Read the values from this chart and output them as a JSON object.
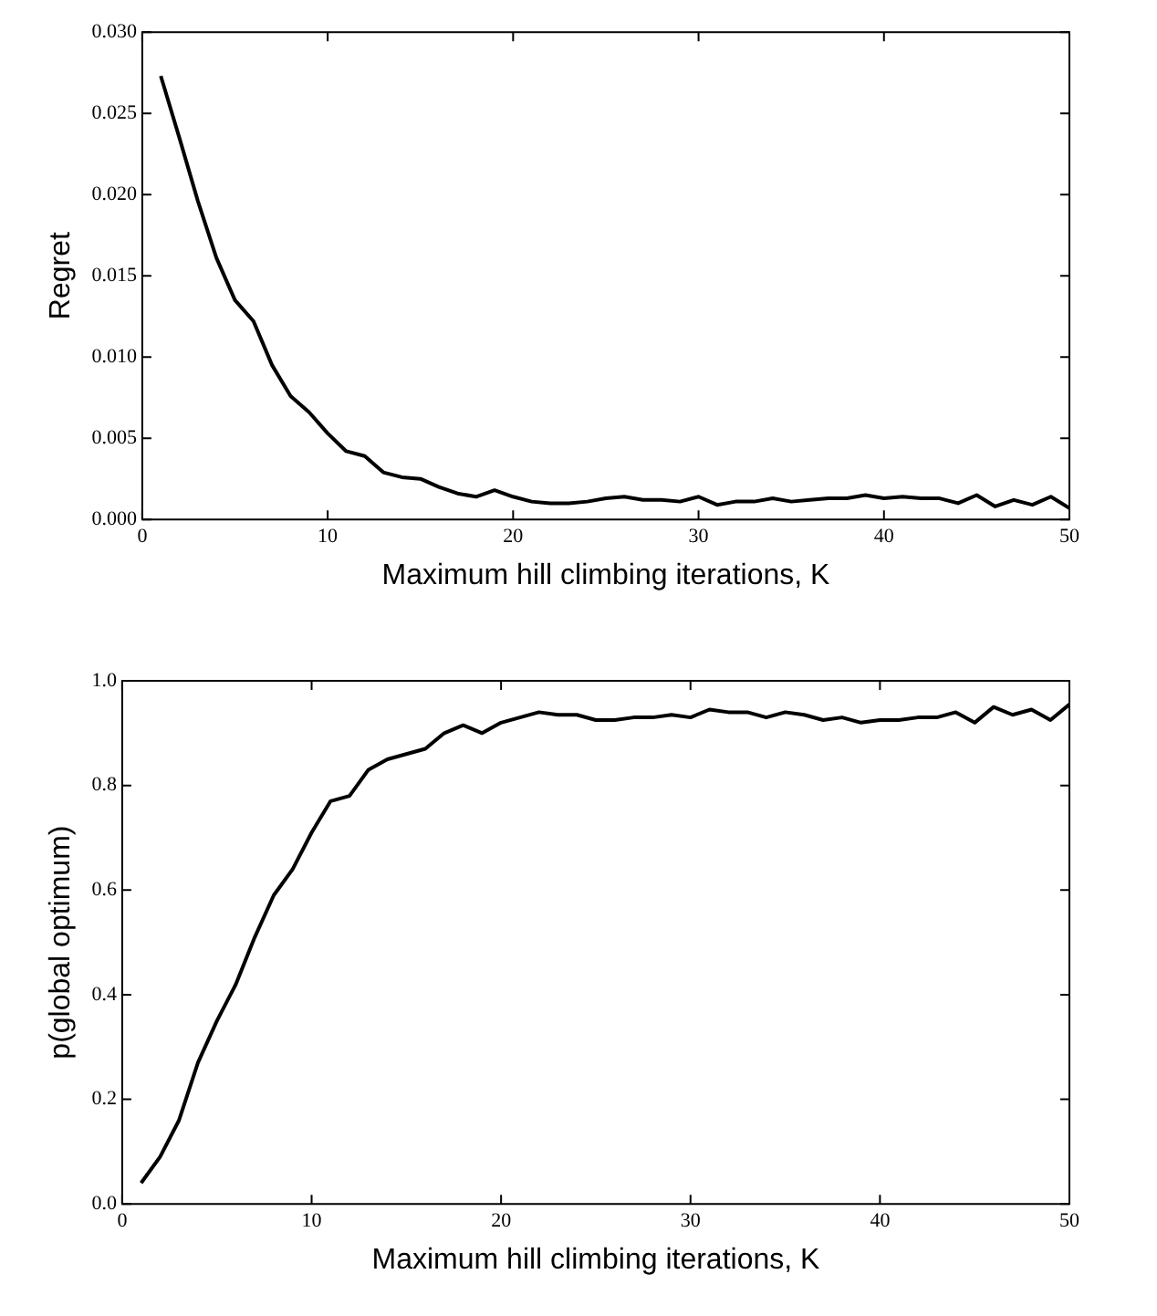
{
  "chart_data": [
    {
      "type": "line",
      "xlabel": "Maximum hill climbing iterations, K",
      "ylabel": "Regret",
      "x": [
        1,
        2,
        3,
        4,
        5,
        6,
        7,
        8,
        9,
        10,
        11,
        12,
        13,
        14,
        15,
        16,
        17,
        18,
        19,
        20,
        21,
        22,
        23,
        24,
        25,
        26,
        27,
        28,
        29,
        30,
        31,
        32,
        33,
        34,
        35,
        36,
        37,
        38,
        39,
        40,
        41,
        42,
        43,
        44,
        45,
        46,
        47,
        48,
        49,
        50
      ],
      "series": [
        {
          "color": "#000000",
          "values": [
            0.0273,
            0.0235,
            0.0196,
            0.0161,
            0.0135,
            0.0122,
            0.0095,
            0.0076,
            0.0066,
            0.0053,
            0.0042,
            0.0039,
            0.0029,
            0.0026,
            0.0025,
            0.002,
            0.0016,
            0.0014,
            0.0018,
            0.0014,
            0.0011,
            0.001,
            0.001,
            0.0011,
            0.0013,
            0.0014,
            0.0012,
            0.0012,
            0.0011,
            0.0014,
            0.0009,
            0.0011,
            0.0011,
            0.0013,
            0.0011,
            0.0012,
            0.0013,
            0.0013,
            0.0015,
            0.0013,
            0.0014,
            0.0013,
            0.0013,
            0.001,
            0.0015,
            0.0008,
            0.0012,
            0.0009,
            0.0014,
            0.0007
          ]
        }
      ],
      "xlim": [
        0,
        50
      ],
      "xticks": [
        0,
        10,
        20,
        30,
        40,
        50
      ],
      "ylim": [
        0,
        0.03
      ],
      "yticks": [
        {
          "value": 0,
          "label": "0.000"
        },
        {
          "value": 0.005,
          "label": "0.005"
        },
        {
          "value": 0.01,
          "label": "0.010"
        },
        {
          "value": 0.015,
          "label": "0.015"
        },
        {
          "value": 0.02,
          "label": "0.020"
        },
        {
          "value": 0.025,
          "label": "0.025"
        },
        {
          "value": 0.03,
          "label": "0.030"
        }
      ],
      "grid": false,
      "legend": false,
      "marker": "none",
      "line_style": "solid"
    },
    {
      "type": "line",
      "xlabel": "Maximum hill climbing iterations, K",
      "ylabel": "p(global optimum)",
      "x": [
        1,
        2,
        3,
        4,
        5,
        6,
        7,
        8,
        9,
        10,
        11,
        12,
        13,
        14,
        15,
        16,
        17,
        18,
        19,
        20,
        21,
        22,
        23,
        24,
        25,
        26,
        27,
        28,
        29,
        30,
        31,
        32,
        33,
        34,
        35,
        36,
        37,
        38,
        39,
        40,
        41,
        42,
        43,
        44,
        45,
        46,
        47,
        48,
        49,
        50
      ],
      "series": [
        {
          "color": "#000000",
          "values": [
            0.04,
            0.09,
            0.16,
            0.27,
            0.35,
            0.42,
            0.51,
            0.59,
            0.64,
            0.71,
            0.77,
            0.78,
            0.83,
            0.85,
            0.86,
            0.87,
            0.9,
            0.915,
            0.9,
            0.92,
            0.93,
            0.94,
            0.935,
            0.935,
            0.925,
            0.925,
            0.93,
            0.93,
            0.935,
            0.93,
            0.945,
            0.94,
            0.94,
            0.93,
            0.94,
            0.935,
            0.925,
            0.93,
            0.92,
            0.925,
            0.925,
            0.93,
            0.93,
            0.94,
            0.92,
            0.95,
            0.935,
            0.945,
            0.925,
            0.955
          ]
        }
      ],
      "xlim": [
        0,
        50
      ],
      "xticks": [
        0,
        10,
        20,
        30,
        40,
        50
      ],
      "ylim": [
        0,
        1
      ],
      "yticks": [
        {
          "value": 0,
          "label": "0.0"
        },
        {
          "value": 0.2,
          "label": "0.2"
        },
        {
          "value": 0.4,
          "label": "0.4"
        },
        {
          "value": 0.6,
          "label": "0.6"
        },
        {
          "value": 0.8,
          "label": "0.8"
        },
        {
          "value": 1,
          "label": "1.0"
        }
      ],
      "grid": false,
      "legend": false,
      "marker": "none",
      "line_style": "solid"
    }
  ]
}
